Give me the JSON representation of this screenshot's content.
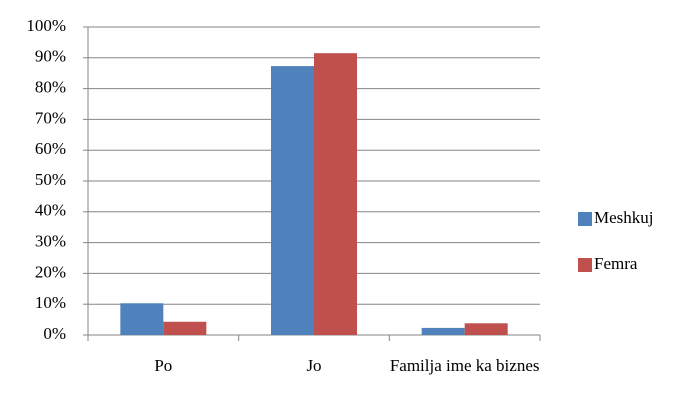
{
  "chart_data": {
    "type": "bar",
    "categories": [
      "Po",
      "Jo",
      "Familja ime ka biznes"
    ],
    "series": [
      {
        "name": "Meshkuj",
        "color": "#4f81bd",
        "values": [
          10.3,
          87.3,
          2.3
        ]
      },
      {
        "name": "Femra",
        "color": "#c0504d",
        "values": [
          4.3,
          91.5,
          3.8
        ]
      }
    ],
    "ylim": [
      0,
      100
    ],
    "yticks": [
      {
        "value": 0,
        "label": "0%"
      },
      {
        "value": 10,
        "label": "10%"
      },
      {
        "value": 20,
        "label": "20%"
      },
      {
        "value": 30,
        "label": "30%"
      },
      {
        "value": 40,
        "label": "40%"
      },
      {
        "value": 50,
        "label": "50%"
      },
      {
        "value": 60,
        "label": "60%"
      },
      {
        "value": 70,
        "label": "70%"
      },
      {
        "value": 80,
        "label": "80%"
      },
      {
        "value": 90,
        "label": "90%"
      },
      {
        "value": 100,
        "label": "100%"
      }
    ],
    "grid": true,
    "legend": "right"
  }
}
